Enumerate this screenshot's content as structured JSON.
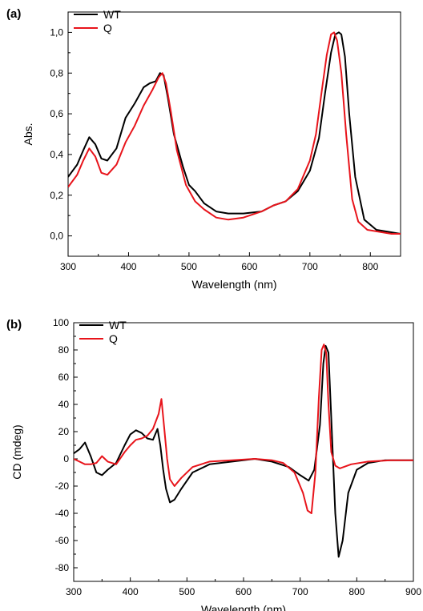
{
  "chart_data": [
    {
      "type": "line",
      "panel_label": "(a)",
      "title": "",
      "xlabel": "Wavelength (nm)",
      "ylabel": "Abs.",
      "xlim": [
        300,
        850
      ],
      "ylim": [
        -0.1,
        1.1
      ],
      "xticks": [
        300,
        400,
        500,
        600,
        700,
        800
      ],
      "xtick_labels": [
        "300",
        "400",
        "500",
        "600",
        "700",
        "800"
      ],
      "yticks": [
        0.0,
        0.2,
        0.4,
        0.6,
        0.8,
        1.0
      ],
      "ytick_labels": [
        "0,0",
        "0,2",
        "0,4",
        "0,6",
        "0,8",
        "1,0"
      ],
      "legend_position": "top-left",
      "series": [
        {
          "name": "WT",
          "color": "#000000",
          "x": [
            300,
            315,
            325,
            335,
            345,
            355,
            365,
            380,
            395,
            410,
            425,
            435,
            445,
            452,
            458,
            465,
            475,
            490,
            500,
            510,
            525,
            545,
            565,
            590,
            620,
            640,
            660,
            680,
            700,
            715,
            725,
            735,
            742,
            748,
            752,
            758,
            765,
            775,
            790,
            810,
            830,
            850
          ],
          "y": [
            0.29,
            0.35,
            0.42,
            0.485,
            0.45,
            0.38,
            0.37,
            0.43,
            0.58,
            0.65,
            0.73,
            0.75,
            0.76,
            0.8,
            0.79,
            0.68,
            0.5,
            0.34,
            0.25,
            0.22,
            0.16,
            0.12,
            0.11,
            0.11,
            0.12,
            0.15,
            0.17,
            0.22,
            0.32,
            0.48,
            0.7,
            0.9,
            0.99,
            1.0,
            0.99,
            0.88,
            0.6,
            0.29,
            0.08,
            0.03,
            0.02,
            0.01
          ]
        },
        {
          "name": "Q",
          "color": "#e8141b",
          "x": [
            300,
            315,
            325,
            335,
            345,
            355,
            365,
            380,
            395,
            410,
            425,
            440,
            450,
            456,
            462,
            470,
            480,
            495,
            510,
            525,
            545,
            565,
            590,
            620,
            640,
            660,
            680,
            700,
            710,
            720,
            728,
            735,
            740,
            745,
            752,
            760,
            770,
            780,
            795,
            815,
            835,
            850
          ],
          "y": [
            0.24,
            0.3,
            0.37,
            0.43,
            0.39,
            0.31,
            0.3,
            0.35,
            0.46,
            0.54,
            0.64,
            0.72,
            0.78,
            0.8,
            0.75,
            0.61,
            0.42,
            0.25,
            0.17,
            0.13,
            0.09,
            0.08,
            0.09,
            0.12,
            0.15,
            0.17,
            0.23,
            0.37,
            0.5,
            0.72,
            0.89,
            0.99,
            1.0,
            0.96,
            0.8,
            0.5,
            0.18,
            0.07,
            0.03,
            0.02,
            0.01,
            0.01
          ]
        }
      ]
    },
    {
      "type": "line",
      "panel_label": "(b)",
      "title": "",
      "xlabel": "Wavelength (nm)",
      "ylabel": "CD (mdeg)",
      "xlim": [
        300,
        900
      ],
      "ylim": [
        -90,
        100
      ],
      "xticks": [
        300,
        400,
        500,
        600,
        700,
        800,
        900
      ],
      "xtick_labels": [
        "300",
        "400",
        "500",
        "600",
        "700",
        "800",
        "900"
      ],
      "yticks": [
        -80,
        -60,
        -40,
        -20,
        0,
        20,
        40,
        60,
        80,
        100
      ],
      "ytick_labels": [
        "-80",
        "-60",
        "-40",
        "-20",
        "0",
        "20",
        "40",
        "60",
        "80",
        "100"
      ],
      "legend_position": "top-left",
      "series": [
        {
          "name": "WT",
          "color": "#000000",
          "x": [
            300,
            310,
            320,
            330,
            340,
            350,
            360,
            375,
            390,
            400,
            410,
            420,
            430,
            440,
            448,
            453,
            458,
            463,
            470,
            478,
            490,
            510,
            540,
            580,
            620,
            650,
            680,
            700,
            715,
            725,
            735,
            741,
            745,
            750,
            755,
            762,
            768,
            775,
            785,
            800,
            820,
            850,
            880,
            900
          ],
          "y": [
            4,
            7,
            12,
            2,
            -10,
            -12,
            -8,
            -3,
            10,
            18,
            21,
            19,
            15,
            14,
            22,
            10,
            -8,
            -22,
            -32,
            -30,
            -22,
            -10,
            -4,
            -2,
            0,
            -2,
            -6,
            -12,
            -16,
            -8,
            25,
            70,
            83,
            78,
            30,
            -40,
            -72,
            -60,
            -25,
            -8,
            -3,
            -1,
            -1,
            -1
          ]
        },
        {
          "name": "Q",
          "color": "#e8141b",
          "x": [
            300,
            310,
            320,
            330,
            340,
            350,
            360,
            375,
            390,
            400,
            410,
            420,
            430,
            440,
            450,
            455,
            460,
            465,
            470,
            478,
            490,
            510,
            540,
            580,
            620,
            650,
            670,
            690,
            705,
            713,
            720,
            727,
            733,
            738,
            742,
            746,
            750,
            755,
            762,
            770,
            790,
            820,
            860,
            900
          ],
          "y": [
            0,
            -2,
            -4,
            -4,
            -3,
            2,
            -2,
            -4,
            5,
            10,
            14,
            15,
            17,
            22,
            33,
            44,
            22,
            0,
            -15,
            -20,
            -14,
            -6,
            -2,
            -1,
            0,
            -1,
            -3,
            -10,
            -25,
            -38,
            -40,
            -10,
            45,
            80,
            84,
            78,
            40,
            5,
            -5,
            -7,
            -4,
            -2,
            -1,
            -1
          ]
        }
      ]
    }
  ]
}
